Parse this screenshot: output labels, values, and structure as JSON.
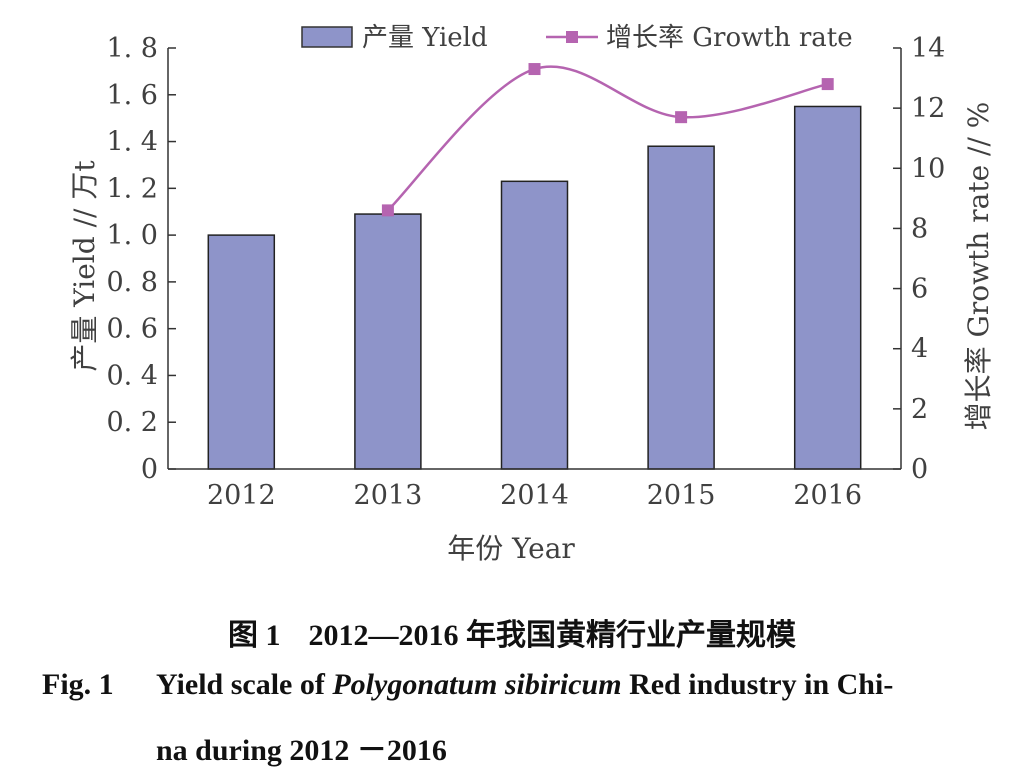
{
  "chart_data": {
    "type": "bar+line",
    "categories": [
      "2012",
      "2013",
      "2014",
      "2015",
      "2016"
    ],
    "xlabel": "年份 Year",
    "ylabel_left": "产量 Yield // 万t",
    "ylabel_right": "增长率 Growth rate // %",
    "yticks_left": [
      "0",
      "0. 2",
      "0. 4",
      "0. 6",
      "0. 8",
      "1. 0",
      "1. 2",
      "1. 4",
      "1. 6",
      "1. 8"
    ],
    "yticks_right": [
      "0",
      "2",
      "4",
      "6",
      "8",
      "10",
      "12",
      "14"
    ],
    "ylim_left": [
      0,
      1.8
    ],
    "ylim_right": [
      0,
      14
    ],
    "legend_position": "top",
    "series": [
      {
        "name": "产量 Yield",
        "type": "bar",
        "axis": "left",
        "color": "#8e94c9",
        "values": [
          1.0,
          1.09,
          1.23,
          1.38,
          1.55
        ]
      },
      {
        "name": "增长率 Growth rate",
        "type": "line",
        "axis": "right",
        "color": "#b564b0",
        "values": [
          null,
          8.6,
          13.3,
          11.7,
          12.8
        ]
      }
    ]
  },
  "caption": {
    "cn_fignum": "图 1",
    "cn_title": "2012—2016 年我国黄精行业产量规模",
    "en_fignum": "Fig. 1",
    "en_line1_a": "Yield scale of ",
    "en_line1_italic": "Polygonatum sibiricum",
    "en_line1_b": " Red industry in Chi-",
    "en_line2": "na during 2012 －2016"
  }
}
